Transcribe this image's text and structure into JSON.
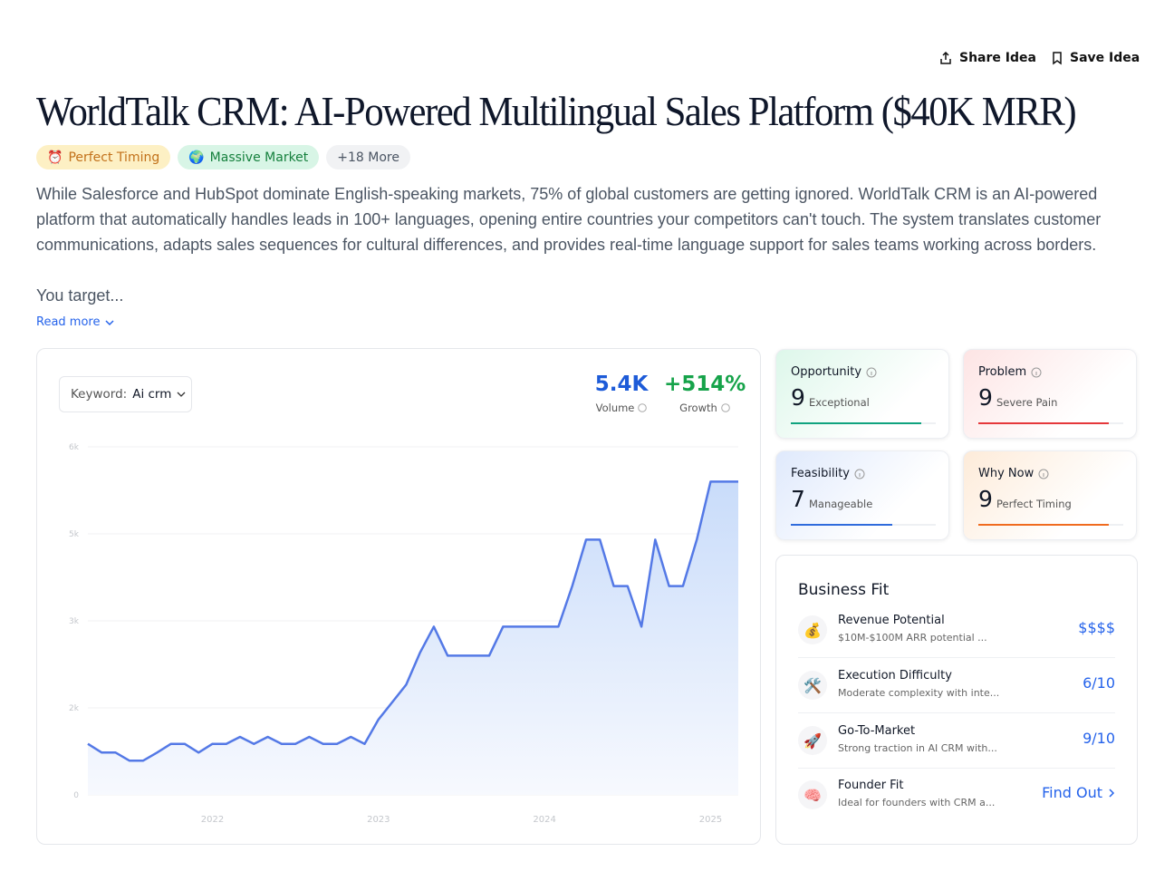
{
  "header": {
    "actions": [
      {
        "label": "Share Idea"
      },
      {
        "label": "Save Idea"
      }
    ]
  },
  "idea": {
    "title": "WorldTalk CRM: AI-Powered Multilingual Sales Platform ($40K MRR)",
    "tags": [
      {
        "icon": "⏰",
        "label": "Perfect Timing"
      },
      {
        "icon": "🌍",
        "label": "Massive Market"
      },
      {
        "label": "+18 More"
      }
    ],
    "description": "While Salesforce and HubSpot dominate English-speaking markets, 75% of global customers are getting ignored. WorldTalk CRM is an AI-powered platform that automatically handles leads in 100+ languages, opening entire countries your competitors can't touch. The system translates customer communications, adapts sales sequences for cultural differences, and provides real-time language support for sales teams working across borders.",
    "teaser": "You target...",
    "read_more": "Read more"
  },
  "trend": {
    "keyword_label": "Keyword:",
    "keyword": "Ai crm",
    "stats": [
      {
        "value": "5.4K",
        "label": "Volume"
      },
      {
        "value": "+514%",
        "label": "Growth"
      }
    ]
  },
  "chart_data": {
    "type": "area",
    "categories": [
      null,
      null,
      null,
      null,
      null,
      null,
      null,
      null,
      null,
      "2022",
      null,
      null,
      null,
      null,
      null,
      null,
      null,
      null,
      null,
      null,
      null,
      "2023",
      null,
      null,
      null,
      null,
      null,
      null,
      null,
      null,
      null,
      null,
      null,
      "2024",
      null,
      null,
      null,
      null,
      null,
      null,
      null,
      null,
      null,
      null,
      null,
      "2025",
      null,
      null
    ],
    "values": [
      880,
      730,
      730,
      590,
      590,
      730,
      880,
      880,
      730,
      880,
      880,
      1000,
      880,
      1000,
      880,
      880,
      1000,
      880,
      880,
      1000,
      880,
      1300,
      1600,
      1900,
      2450,
      2900,
      2400,
      2400,
      2400,
      2400,
      2900,
      2900,
      2900,
      2900,
      2900,
      3600,
      4400,
      4400,
      3600,
      3600,
      2900,
      4400,
      3600,
      3600,
      4400,
      5400,
      5400,
      5400
    ],
    "color": "#5479e6",
    "ylim": [
      0,
      6000
    ],
    "yticks": [
      0,
      {
        "value": 1500,
        "label": "2k"
      },
      {
        "value": 3000,
        "label": "3k"
      },
      {
        "value": 4500,
        "label": "5k"
      },
      {
        "value": 6000,
        "label": "6k"
      }
    ],
    "grid": true
  },
  "scores": [
    {
      "label": "Opportunity",
      "score": 9,
      "descriptor": "Exceptional",
      "color": "#10a37f"
    },
    {
      "label": "Problem",
      "score": 9,
      "descriptor": "Severe Pain",
      "color": "#e5383b"
    },
    {
      "label": "Feasibility",
      "score": 7,
      "descriptor": "Manageable",
      "color": "#2f6bdc"
    },
    {
      "label": "Why Now",
      "score": 9,
      "descriptor": "Perfect Timing",
      "color": "#f06b1f"
    }
  ],
  "business_fit": {
    "title": "Business Fit",
    "items": [
      {
        "icon": "💰",
        "name": "Revenue Potential",
        "description": "$10M-$100M ARR potential ...",
        "value": "$$$$"
      },
      {
        "icon": "🛠️",
        "name": "Execution Difficulty",
        "description": "Moderate complexity with inte...",
        "value": "6/10"
      },
      {
        "icon": "🚀",
        "name": "Go-To-Market",
        "description": "Strong traction in AI CRM with...",
        "value": "9/10"
      },
      {
        "icon": "🧠",
        "name": "Founder Fit",
        "description": "Ideal for founders with CRM a...",
        "value": "Find Out"
      }
    ]
  }
}
